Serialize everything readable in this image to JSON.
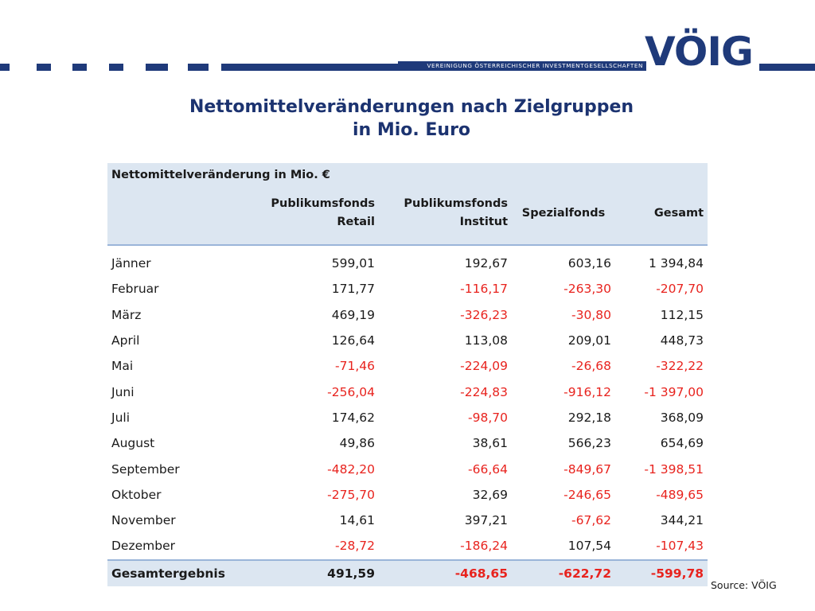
{
  "header": {
    "association": "VEREINIGUNG ÖSTERREICHISCHER INVESTMENTGESELLSCHAFTEN",
    "logo_text": "VÖIG",
    "brand_color": "#1f3a7a"
  },
  "title": {
    "line1": "Nettomittelveränderungen nach Zielgruppen",
    "line2": "in Mio. Euro"
  },
  "table": {
    "caption": "Nettomittelveränderung in Mio. €",
    "columns": {
      "retail_line1": "Publikumsfonds",
      "retail_line2": "Retail",
      "institut_line1": "Publikumsfonds",
      "institut_line2": "Institut",
      "spezial": "Spezialfonds",
      "gesamt": "Gesamt"
    },
    "rows": [
      {
        "month": "Jänner",
        "retail": "599,01",
        "institut": "192,67",
        "spezial": "603,16",
        "gesamt": "1 394,84"
      },
      {
        "month": "Februar",
        "retail": "171,77",
        "institut": "-116,17",
        "spezial": "-263,30",
        "gesamt": "-207,70"
      },
      {
        "month": "März",
        "retail": "469,19",
        "institut": "-326,23",
        "spezial": "-30,80",
        "gesamt": "112,15"
      },
      {
        "month": "April",
        "retail": "126,64",
        "institut": "113,08",
        "spezial": "209,01",
        "gesamt": "448,73"
      },
      {
        "month": "Mai",
        "retail": "-71,46",
        "institut": "-224,09",
        "spezial": "-26,68",
        "gesamt": "-322,22"
      },
      {
        "month": "Juni",
        "retail": "-256,04",
        "institut": "-224,83",
        "spezial": "-916,12",
        "gesamt": "-1 397,00"
      },
      {
        "month": "Juli",
        "retail": "174,62",
        "institut": "-98,70",
        "spezial": "292,18",
        "gesamt": "368,09"
      },
      {
        "month": "August",
        "retail": "49,86",
        "institut": "38,61",
        "spezial": "566,23",
        "gesamt": "654,69"
      },
      {
        "month": "September",
        "retail": "-482,20",
        "institut": "-66,64",
        "spezial": "-849,67",
        "gesamt": "-1 398,51"
      },
      {
        "month": "Oktober",
        "retail": "-275,70",
        "institut": "32,69",
        "spezial": "-246,65",
        "gesamt": "-489,65"
      },
      {
        "month": "November",
        "retail": "14,61",
        "institut": "397,21",
        "spezial": "-67,62",
        "gesamt": "344,21"
      },
      {
        "month": "Dezember",
        "retail": "-28,72",
        "institut": "-186,24",
        "spezial": "107,54",
        "gesamt": "-107,43"
      }
    ],
    "total": {
      "label": "Gesamtergebnis",
      "retail": "491,59",
      "institut": "-468,65",
      "spezial": "-622,72",
      "gesamt": "-599,78"
    },
    "colors": {
      "negative": "#e8231e",
      "header_bg": "#dce6f1",
      "rule": "#9ab5d9"
    }
  },
  "source": "Source: VÖIG"
}
